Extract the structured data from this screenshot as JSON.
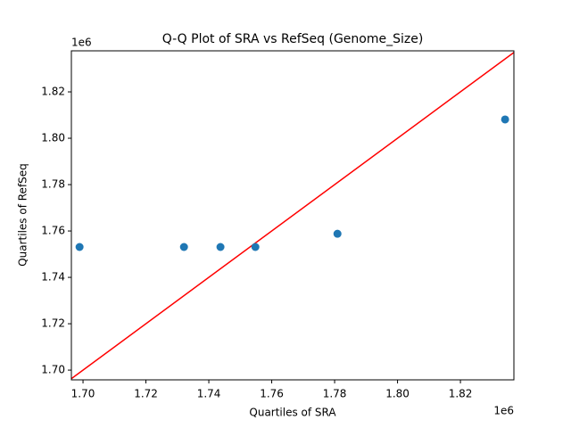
{
  "chart_data": {
    "type": "scatter",
    "title": "Q-Q Plot of SRA vs RefSeq (Genome_Size)",
    "x_label": "Quartiles of SRA",
    "y_label": "Quartiles of RefSeq",
    "x_offset_label": "1e6",
    "y_offset_label": "1e6",
    "x": [
      1.6989,
      1.7321,
      1.7437,
      1.7548,
      1.7809,
      1.8342
    ],
    "values": [
      1.7531,
      1.7531,
      1.7531,
      1.7531,
      1.7588,
      1.8081
    ],
    "color": "#1f77b4",
    "reference_line_color": "#ff0000",
    "xlim": [
      1.6963,
      1.837
    ],
    "ylim": [
      1.6958,
      1.8377
    ],
    "xticks": [
      {
        "value": 1.7,
        "label": "1.70"
      },
      {
        "value": 1.72,
        "label": "1.72"
      },
      {
        "value": 1.74,
        "label": "1.74"
      },
      {
        "value": 1.76,
        "label": "1.76"
      },
      {
        "value": 1.78,
        "label": "1.78"
      },
      {
        "value": 1.8,
        "label": "1.80"
      },
      {
        "value": 1.82,
        "label": "1.82"
      }
    ],
    "yticks": [
      {
        "value": 1.7,
        "label": "1.70"
      },
      {
        "value": 1.72,
        "label": "1.72"
      },
      {
        "value": 1.74,
        "label": "1.74"
      },
      {
        "value": 1.76,
        "label": "1.76"
      },
      {
        "value": 1.78,
        "label": "1.78"
      },
      {
        "value": 1.8,
        "label": "1.80"
      },
      {
        "value": 1.82,
        "label": "1.82"
      }
    ]
  }
}
